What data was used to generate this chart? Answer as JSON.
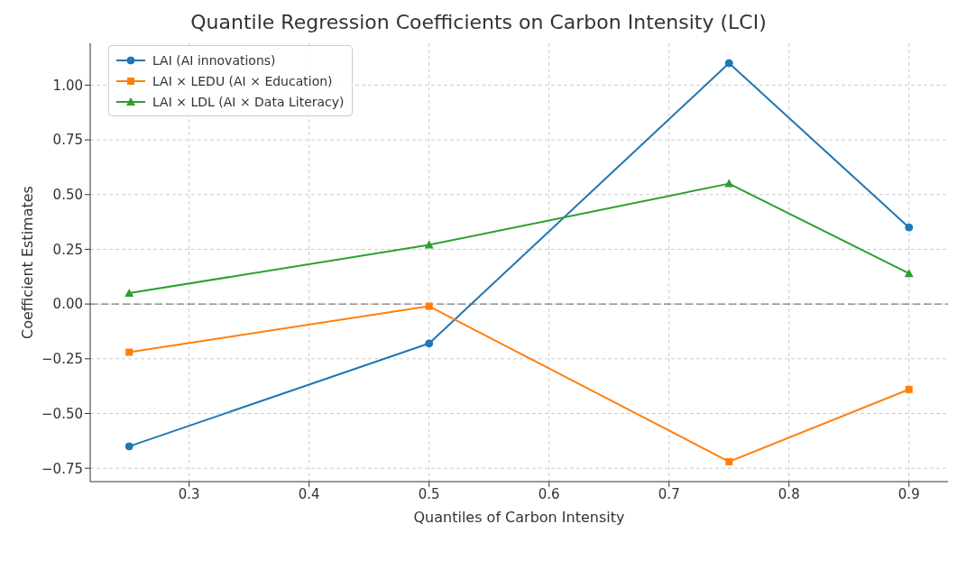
{
  "chart_data": {
    "type": "line",
    "title": "Quantile Regression Coefficients on Carbon Intensity (LCI)",
    "xlabel": "Quantiles of Carbon Intensity",
    "ylabel": "Coefficient Estimates",
    "x": [
      0.25,
      0.5,
      0.75,
      0.9
    ],
    "series": [
      {
        "name": "LAI (AI innovations)",
        "color": "#1f77b4",
        "marker": "circle",
        "values": [
          -0.65,
          -0.18,
          1.1,
          0.35
        ]
      },
      {
        "name": "LAI × LEDU (AI × Education)",
        "color": "#ff7f0e",
        "marker": "square",
        "values": [
          -0.22,
          -0.01,
          -0.72,
          -0.39
        ]
      },
      {
        "name": "LAI × LDL (AI × Data Literacy)",
        "color": "#2ca02c",
        "marker": "triangle",
        "values": [
          0.05,
          0.27,
          0.55,
          0.14
        ]
      }
    ],
    "xlim": [
      0.2175,
      0.9325
    ],
    "xticks": [
      0.3,
      0.4,
      0.5,
      0.6,
      0.7,
      0.8,
      0.9
    ],
    "ylim": [
      -0.811,
      1.191
    ],
    "yticks": [
      {
        "value": -0.75,
        "label": "−0.75"
      },
      {
        "value": -0.5,
        "label": "−0.50"
      },
      {
        "value": -0.25,
        "label": "−0.25"
      },
      {
        "value": 0,
        "label": "0.00"
      },
      {
        "value": 0.25,
        "label": "0.25"
      },
      {
        "value": 0.5,
        "label": "0.50"
      },
      {
        "value": 0.75,
        "label": "0.75"
      },
      {
        "value": 1,
        "label": "1.00"
      }
    ],
    "ref_lines": [
      {
        "axis": "y",
        "value": 0,
        "color": "#808080",
        "line_style": "dashed"
      }
    ],
    "grid": true,
    "legend": "top left",
    "line_style": "solid"
  }
}
